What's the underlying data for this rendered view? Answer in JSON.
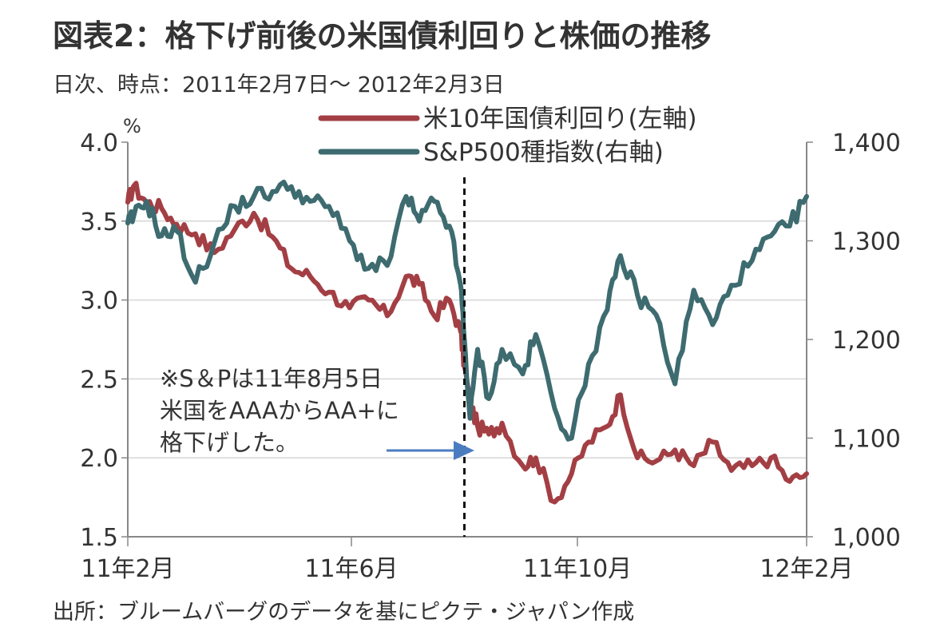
{
  "title": "図表2：格下げ前後の米国債利回りと株価の推移",
  "subtitle": "日次、時点：2011年2月7日～ 2012年2月3日",
  "source": "出所：ブルームバーグのデータを基にピクテ・ジャパン作成",
  "colors": {
    "yield_line": "#a33f44",
    "sp500_line": "#3d6b70",
    "arrow": "#4a7cc0",
    "grid": "#d6d6d6",
    "axis": "#888888"
  },
  "chart_data": {
    "type": "line",
    "title": "格下げ前後の米国債利回りと株価の推移",
    "period": "2011-02-07 to 2012-02-03",
    "x_tick_labels": [
      "11年2月",
      "11年6月",
      "11年10月",
      "12年2月"
    ],
    "y_left": {
      "unit": "%",
      "ticks": [
        "4.0",
        "3.5",
        "3.0",
        "2.5",
        "2.0",
        "1.5"
      ],
      "range": [
        1.5,
        4.0
      ]
    },
    "y_right": {
      "ticks": [
        "1,400",
        "1,300",
        "1,200",
        "1,100",
        "1,000"
      ],
      "range": [
        1000,
        1400
      ]
    },
    "grid": true,
    "legend_position": "top-center",
    "series": [
      {
        "name": "米10年国債利回り(左軸)",
        "axis": "left",
        "x": [
          "2011-02-07",
          "2011-02-10",
          "2011-02-17",
          "2011-02-25",
          "2011-03-05",
          "2011-03-15",
          "2011-03-25",
          "2011-04-05",
          "2011-04-15",
          "2011-04-25",
          "2011-05-05",
          "2011-05-15",
          "2011-05-25",
          "2011-06-05",
          "2011-06-15",
          "2011-06-25",
          "2011-07-05",
          "2011-07-12",
          "2011-07-20",
          "2011-07-28",
          "2011-08-03",
          "2011-08-05",
          "2011-08-08",
          "2011-08-12",
          "2011-08-18",
          "2011-08-25",
          "2011-09-05",
          "2011-09-12",
          "2011-09-22",
          "2011-10-01",
          "2011-10-10",
          "2011-10-20",
          "2011-10-27",
          "2011-11-05",
          "2011-11-15",
          "2011-11-25",
          "2011-12-05",
          "2011-12-15",
          "2011-12-25",
          "2012-01-05",
          "2012-01-15",
          "2012-01-25",
          "2012-02-03"
        ],
        "values": [
          3.62,
          3.72,
          3.62,
          3.58,
          3.48,
          3.42,
          3.3,
          3.45,
          3.55,
          3.4,
          3.2,
          3.15,
          3.05,
          2.95,
          3.0,
          2.9,
          3.15,
          3.1,
          2.9,
          3.0,
          2.8,
          2.58,
          2.35,
          2.2,
          2.15,
          2.22,
          1.95,
          2.0,
          1.72,
          1.9,
          2.1,
          2.2,
          2.4,
          2.0,
          1.98,
          2.05,
          1.95,
          2.1,
          1.92,
          1.95,
          2.0,
          1.85,
          1.9
        ]
      },
      {
        "name": "S&P500種指数(右軸)",
        "axis": "right",
        "x": [
          "2011-02-07",
          "2011-02-10",
          "2011-02-17",
          "2011-02-25",
          "2011-03-05",
          "2011-03-15",
          "2011-03-25",
          "2011-04-05",
          "2011-04-15",
          "2011-04-25",
          "2011-05-05",
          "2011-05-15",
          "2011-05-25",
          "2011-06-05",
          "2011-06-15",
          "2011-06-25",
          "2011-07-05",
          "2011-07-12",
          "2011-07-20",
          "2011-07-28",
          "2011-08-03",
          "2011-08-05",
          "2011-08-08",
          "2011-08-12",
          "2011-08-18",
          "2011-08-25",
          "2011-09-05",
          "2011-09-12",
          "2011-09-22",
          "2011-10-01",
          "2011-10-10",
          "2011-10-20",
          "2011-10-27",
          "2011-11-05",
          "2011-11-15",
          "2011-11-25",
          "2011-12-05",
          "2011-12-15",
          "2011-12-25",
          "2012-01-05",
          "2012-01-15",
          "2012-01-25",
          "2012-02-03"
        ],
        "values": [
          1318,
          1324,
          1340,
          1305,
          1310,
          1258,
          1298,
          1335,
          1345,
          1350,
          1355,
          1340,
          1335,
          1300,
          1272,
          1275,
          1345,
          1320,
          1340,
          1315,
          1255,
          1200,
          1120,
          1190,
          1140,
          1190,
          1165,
          1205,
          1130,
          1100,
          1175,
          1230,
          1285,
          1245,
          1225,
          1155,
          1250,
          1215,
          1255,
          1280,
          1305,
          1315,
          1345
        ]
      }
    ],
    "annotation": {
      "date": "2011-08-05",
      "text_lines": [
        "※S＆Pは11年8月5日",
        "米国をAAAからAA+に",
        "格下げした。"
      ]
    }
  }
}
